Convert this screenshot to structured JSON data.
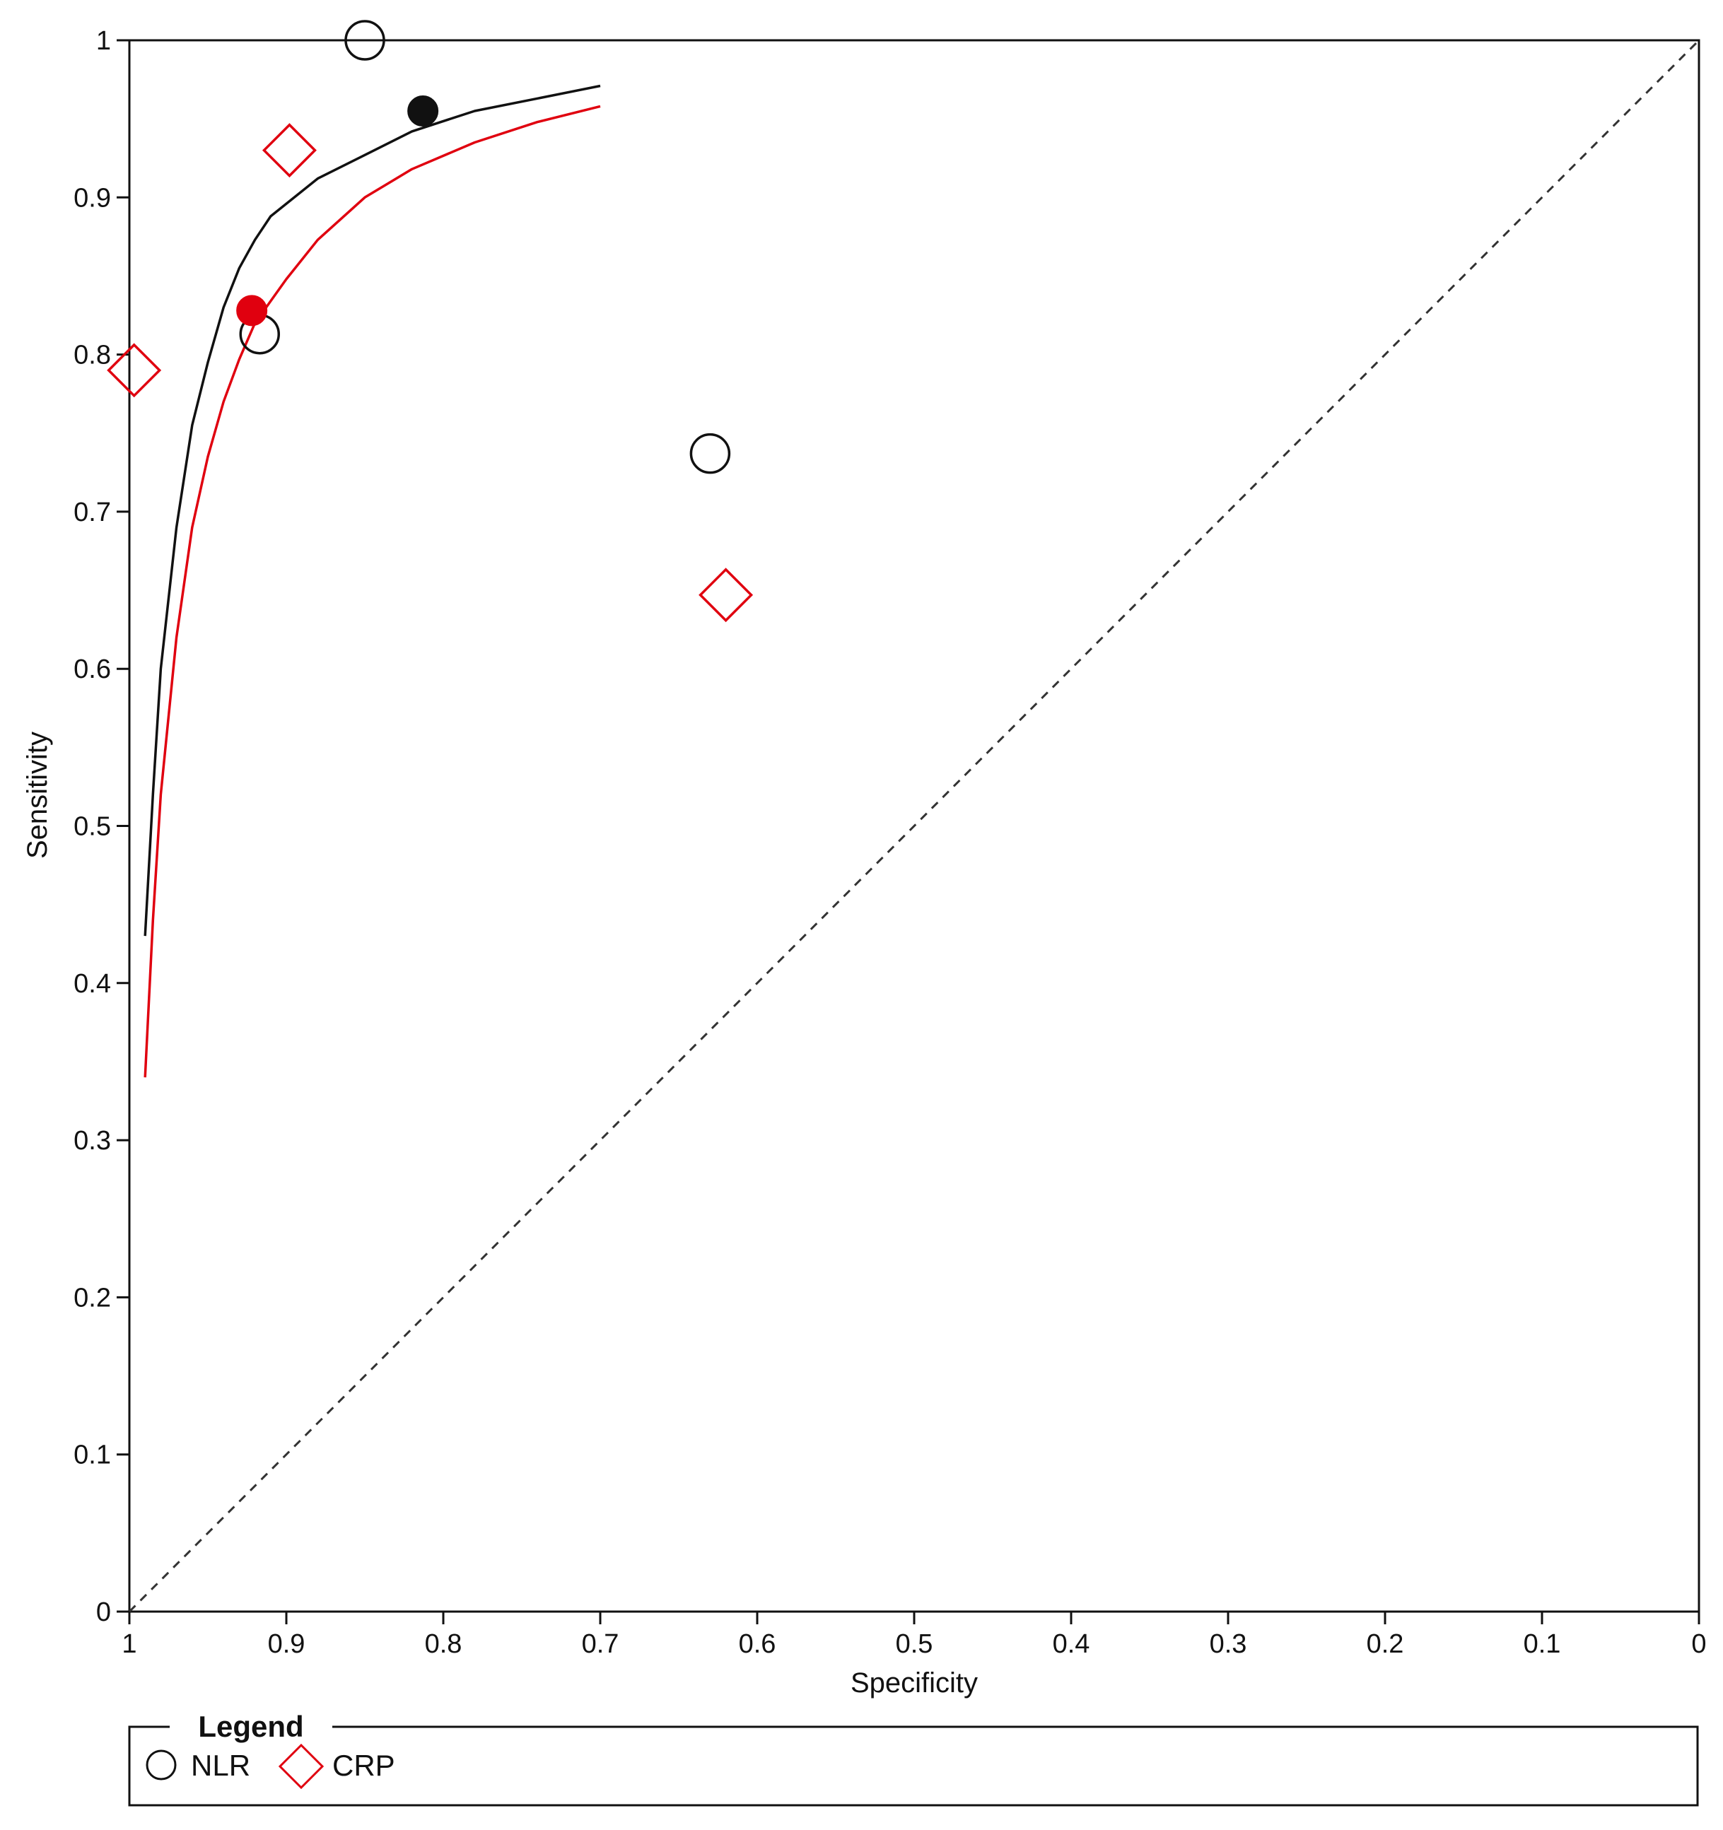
{
  "chart_data": {
    "type": "scatter",
    "title": "",
    "xlabel": "Specificity",
    "ylabel": "Sensitivity",
    "xlim": [
      1,
      0
    ],
    "ylim": [
      0,
      1
    ],
    "x_reversed": true,
    "x_ticks": [
      "1",
      "0.9",
      "0.8",
      "0.7",
      "0.6",
      "0.5",
      "0.4",
      "0.3",
      "0.2",
      "0.1",
      "0"
    ],
    "y_ticks": [
      "0",
      "0.1",
      "0.2",
      "0.3",
      "0.4",
      "0.5",
      "0.6",
      "0.7",
      "0.8",
      "0.9",
      "1"
    ],
    "grid": false,
    "reference_line": {
      "from": [
        1,
        0
      ],
      "to": [
        0,
        1
      ],
      "style": "dashed",
      "color": "#333333"
    },
    "legend": {
      "title": "Legend",
      "placement": "bottom",
      "entries": [
        {
          "label": "NLR",
          "marker": "circle",
          "color": "#111111"
        },
        {
          "label": "CRP",
          "marker": "diamond",
          "color": "#e0000f"
        }
      ]
    },
    "series": [
      {
        "name": "NLR",
        "marker": "circle",
        "color": "#111111",
        "points": [
          {
            "specificity": 0.85,
            "sensitivity": 1.0
          },
          {
            "specificity": 0.917,
            "sensitivity": 0.813
          },
          {
            "specificity": 0.63,
            "sensitivity": 0.737
          }
        ],
        "summary_point": {
          "specificity": 0.813,
          "sensitivity": 0.955
        },
        "sroc_curve": [
          [
            0.99,
            0.43
          ],
          [
            0.985,
            0.52
          ],
          [
            0.98,
            0.6
          ],
          [
            0.97,
            0.69
          ],
          [
            0.96,
            0.755
          ],
          [
            0.95,
            0.795
          ],
          [
            0.94,
            0.83
          ],
          [
            0.93,
            0.855
          ],
          [
            0.92,
            0.873
          ],
          [
            0.91,
            0.888
          ],
          [
            0.88,
            0.912
          ],
          [
            0.85,
            0.927
          ],
          [
            0.82,
            0.942
          ],
          [
            0.78,
            0.955
          ],
          [
            0.74,
            0.963
          ],
          [
            0.7,
            0.971
          ]
        ]
      },
      {
        "name": "CRP",
        "marker": "diamond",
        "color": "#e0000f",
        "points": [
          {
            "specificity": 0.898,
            "sensitivity": 0.93
          },
          {
            "specificity": 0.997,
            "sensitivity": 0.79
          },
          {
            "specificity": 0.62,
            "sensitivity": 0.647
          }
        ],
        "summary_point": {
          "specificity": 0.922,
          "sensitivity": 0.828
        },
        "sroc_curve": [
          [
            0.99,
            0.34
          ],
          [
            0.985,
            0.44
          ],
          [
            0.98,
            0.52
          ],
          [
            0.97,
            0.62
          ],
          [
            0.96,
            0.69
          ],
          [
            0.95,
            0.735
          ],
          [
            0.94,
            0.77
          ],
          [
            0.93,
            0.797
          ],
          [
            0.92,
            0.82
          ],
          [
            0.9,
            0.848
          ],
          [
            0.88,
            0.873
          ],
          [
            0.85,
            0.9
          ],
          [
            0.82,
            0.918
          ],
          [
            0.78,
            0.935
          ],
          [
            0.74,
            0.948
          ],
          [
            0.7,
            0.958
          ]
        ]
      }
    ]
  }
}
